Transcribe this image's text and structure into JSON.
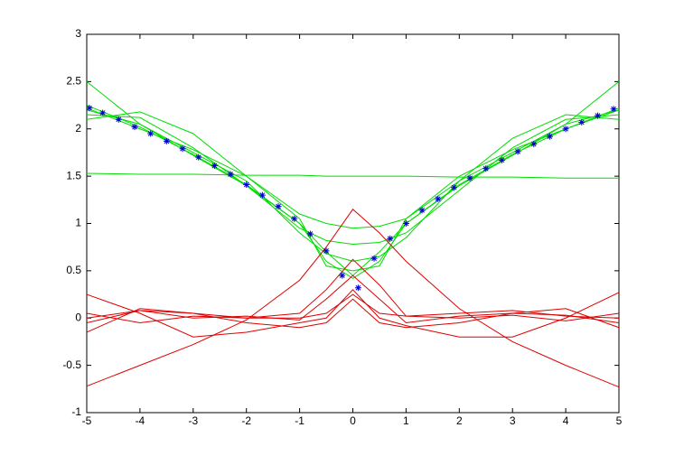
{
  "chart_data": {
    "type": "line",
    "x": [
      -5,
      -4,
      -3,
      -2,
      -1,
      -0.5,
      0,
      0.5,
      1,
      2,
      3,
      4,
      5
    ],
    "series": [
      {
        "color": "#00dd00",
        "values": [
          1.53,
          1.52,
          1.52,
          1.51,
          1.51,
          1.5,
          1.5,
          1.5,
          1.5,
          1.49,
          1.49,
          1.48,
          1.48
        ]
      },
      {
        "color": "#00dd00",
        "values": [
          2.5,
          2.05,
          1.72,
          1.4,
          1.0,
          0.7,
          0.45,
          0.7,
          1.0,
          1.4,
          1.72,
          2.05,
          2.5
        ]
      },
      {
        "color": "#00dd00",
        "values": [
          2.1,
          2.18,
          1.95,
          1.5,
          1.1,
          1.0,
          0.95,
          0.97,
          1.05,
          1.45,
          1.9,
          2.15,
          2.1
        ]
      },
      {
        "color": "#00dd00",
        "values": [
          2.15,
          2.12,
          1.8,
          1.4,
          0.95,
          0.82,
          0.78,
          0.8,
          0.9,
          1.35,
          1.8,
          2.1,
          2.15
        ]
      },
      {
        "color": "#00dd00",
        "values": [
          2.2,
          2.05,
          1.75,
          1.45,
          0.9,
          0.68,
          0.6,
          0.65,
          0.85,
          1.45,
          1.75,
          2.05,
          2.2
        ]
      },
      {
        "color": "#00dd00",
        "values": [
          2.25,
          2.02,
          1.73,
          1.41,
          1.0,
          0.6,
          0.42,
          0.6,
          1.0,
          1.41,
          1.73,
          2.0,
          2.22
        ]
      },
      {
        "color": "#00dd00",
        "values": [
          2.22,
          2.0,
          1.78,
          1.5,
          1.05,
          0.55,
          0.5,
          0.55,
          1.05,
          1.5,
          1.78,
          2.0,
          2.2
        ]
      },
      {
        "color": "#dd0000",
        "values": [
          -0.72,
          -0.5,
          -0.28,
          -0.02,
          0.4,
          0.75,
          1.15,
          0.9,
          0.6,
          0.1,
          -0.25,
          -0.5,
          -0.73
        ]
      },
      {
        "color": "#dd0000",
        "values": [
          0.05,
          -0.05,
          0.02,
          0.0,
          0.05,
          0.3,
          0.62,
          0.35,
          0.02,
          0.0,
          0.03,
          -0.03,
          0.05
        ]
      },
      {
        "color": "#dd0000",
        "values": [
          -0.05,
          0.08,
          0.0,
          0.02,
          -0.02,
          0.2,
          0.45,
          0.2,
          -0.05,
          0.02,
          0.05,
          0.03,
          -0.05
        ]
      },
      {
        "color": "#dd0000",
        "values": [
          0.25,
          0.05,
          -0.2,
          -0.15,
          -0.05,
          0.0,
          0.3,
          0.0,
          -0.08,
          -0.2,
          -0.2,
          0.0,
          0.27
        ]
      },
      {
        "color": "#dd0000",
        "values": [
          -0.15,
          0.1,
          0.05,
          -0.05,
          -0.1,
          -0.05,
          0.2,
          -0.05,
          -0.1,
          -0.05,
          0.05,
          0.1,
          -0.1
        ]
      },
      {
        "color": "#dd0000",
        "values": [
          0.0,
          0.08,
          0.05,
          0.0,
          0.0,
          0.05,
          0.25,
          0.05,
          0.02,
          0.05,
          0.08,
          0.02,
          0.0
        ]
      }
    ],
    "markers": {
      "color": "#0000cc",
      "x": [
        -4.95,
        -4.7,
        -4.4,
        -4.1,
        -3.8,
        -3.5,
        -3.2,
        -2.9,
        -2.6,
        -2.3,
        -2.0,
        -1.7,
        -1.4,
        -1.1,
        -0.8,
        -0.5,
        -0.2,
        0.1,
        0.4,
        0.7,
        1.0,
        1.3,
        1.6,
        1.9,
        2.2,
        2.5,
        2.8,
        3.1,
        3.4,
        3.7,
        4.0,
        4.3,
        4.6,
        4.9
      ],
      "values": [
        2.22,
        2.17,
        2.1,
        2.02,
        1.95,
        1.87,
        1.79,
        1.7,
        1.61,
        1.52,
        1.41,
        1.3,
        1.18,
        1.05,
        0.89,
        0.71,
        0.45,
        0.32,
        0.63,
        0.84,
        1.0,
        1.14,
        1.26,
        1.38,
        1.48,
        1.58,
        1.67,
        1.76,
        1.84,
        1.92,
        2.0,
        2.07,
        2.14,
        2.21
      ]
    },
    "xlim": [
      -5,
      5
    ],
    "ylim": [
      -1,
      3
    ],
    "xticks": [
      -5,
      -4,
      -3,
      -2,
      -1,
      0,
      1,
      2,
      3,
      4,
      5
    ],
    "yticks": [
      -1,
      -0.5,
      0,
      0.5,
      1,
      1.5,
      2,
      2.5,
      3
    ]
  }
}
